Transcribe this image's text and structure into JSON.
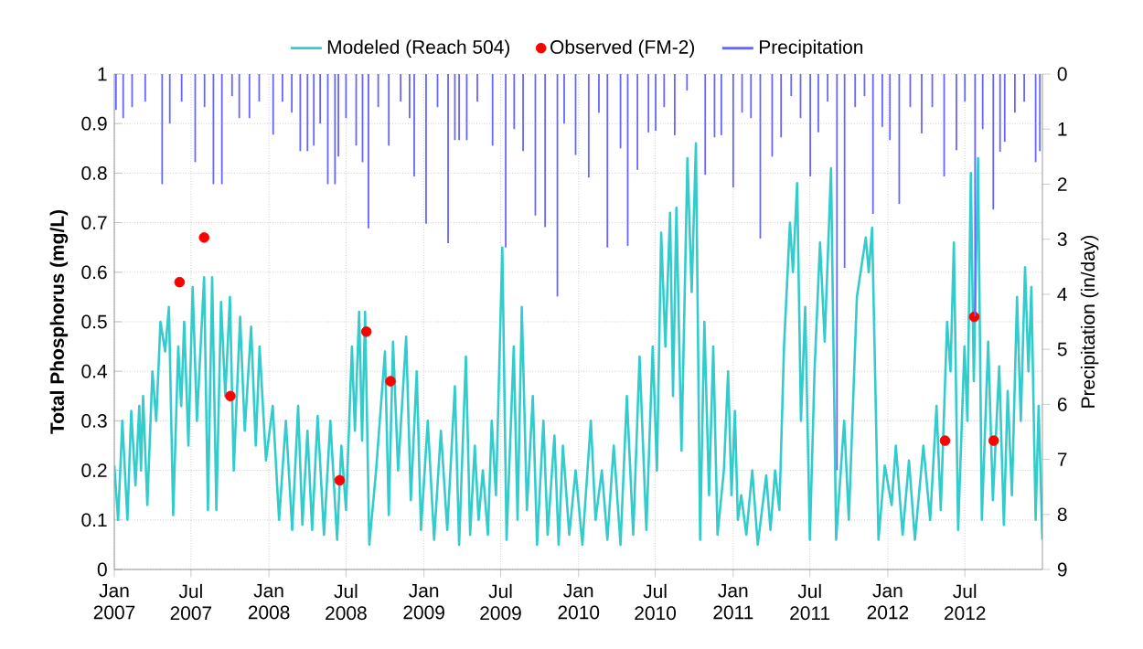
{
  "chart_data": {
    "type": "line",
    "ylabel": "Total Phosphorus (mg/L)",
    "y2label": "Precipitation (in/day)",
    "xlim": [
      "2007-01-01",
      "2012-12-31"
    ],
    "xticks": [
      {
        "value": "2007-01-01",
        "label": "Jan 2007"
      },
      {
        "value": "2007-07-01",
        "label": "Jul 2007"
      },
      {
        "value": "2008-01-01",
        "label": "Jan 2008"
      },
      {
        "value": "2008-07-01",
        "label": "Jul 2008"
      },
      {
        "value": "2009-01-01",
        "label": "Jan 2009"
      },
      {
        "value": "2009-07-01",
        "label": "Jul 2009"
      },
      {
        "value": "2010-01-01",
        "label": "Jan 2010"
      },
      {
        "value": "2010-07-01",
        "label": "Jul 2010"
      },
      {
        "value": "2011-01-01",
        "label": "Jan 2011"
      },
      {
        "value": "2011-07-01",
        "label": "Jul 2011"
      },
      {
        "value": "2012-01-01",
        "label": "Jan 2012"
      },
      {
        "value": "2012-07-01",
        "label": "Jul 2012"
      }
    ],
    "ylim": [
      0,
      1
    ],
    "yticks": [
      0,
      0.1,
      0.2,
      0.3,
      0.4,
      0.5,
      0.6,
      0.7,
      0.8,
      0.9,
      1
    ],
    "y2lim": [
      9,
      0
    ],
    "y2ticks": [
      0,
      1,
      2,
      3,
      4,
      5,
      6,
      7,
      8,
      9
    ],
    "grid": true,
    "legend": "top",
    "series": [
      {
        "name": "Modeled (Reach 504)",
        "color": "#33cccc",
        "x": [
          "2007-01-01",
          "2007-01-10",
          "2007-01-20",
          "2007-02-01",
          "2007-02-10",
          "2007-02-20",
          "2007-03-01",
          "2007-03-05",
          "2007-03-10",
          "2007-03-20",
          "2007-04-01",
          "2007-04-10",
          "2007-04-20",
          "2007-05-01",
          "2007-05-10",
          "2007-05-20",
          "2007-06-01",
          "2007-06-08",
          "2007-06-15",
          "2007-06-25",
          "2007-07-05",
          "2007-07-15",
          "2007-08-01",
          "2007-08-10",
          "2007-08-20",
          "2007-08-30",
          "2007-09-10",
          "2007-09-20",
          "2007-10-01",
          "2007-10-10",
          "2007-10-25",
          "2007-11-05",
          "2007-11-20",
          "2007-12-01",
          "2007-12-10",
          "2007-12-25",
          "2008-01-10",
          "2008-01-25",
          "2008-02-10",
          "2008-02-25",
          "2008-03-10",
          "2008-03-20",
          "2008-04-01",
          "2008-04-12",
          "2008-04-25",
          "2008-05-10",
          "2008-05-25",
          "2008-06-10",
          "2008-06-20",
          "2008-07-01",
          "2008-07-15",
          "2008-07-22",
          "2008-08-01",
          "2008-08-08",
          "2008-08-15",
          "2008-08-25",
          "2008-09-10",
          "2008-10-01",
          "2008-10-10",
          "2008-10-20",
          "2008-11-01",
          "2008-11-20",
          "2008-12-01",
          "2008-12-15",
          "2008-12-25",
          "2009-01-10",
          "2009-01-25",
          "2009-02-10",
          "2009-02-25",
          "2009-03-15",
          "2009-03-25",
          "2009-04-10",
          "2009-04-20",
          "2009-05-01",
          "2009-05-10",
          "2009-05-20",
          "2009-06-01",
          "2009-06-10",
          "2009-06-20",
          "2009-07-05",
          "2009-07-15",
          "2009-08-01",
          "2009-08-10",
          "2009-08-20",
          "2009-09-01",
          "2009-09-15",
          "2009-09-25",
          "2009-10-10",
          "2009-10-20",
          "2009-11-05",
          "2009-11-15",
          "2009-11-25",
          "2009-12-10",
          "2009-12-25",
          "2010-01-10",
          "2010-01-30",
          "2010-02-10",
          "2010-02-25",
          "2010-03-10",
          "2010-03-25",
          "2010-04-10",
          "2010-04-25",
          "2010-05-10",
          "2010-05-25",
          "2010-06-10",
          "2010-06-25",
          "2010-07-05",
          "2010-07-15",
          "2010-07-25",
          "2010-08-05",
          "2010-08-12",
          "2010-08-20",
          "2010-09-01",
          "2010-09-15",
          "2010-09-25",
          "2010-10-05",
          "2010-10-15",
          "2010-10-25",
          "2010-11-05",
          "2010-11-15",
          "2010-11-25",
          "2010-12-10",
          "2010-12-20",
          "2010-12-28",
          "2011-01-05",
          "2011-01-12",
          "2011-01-20",
          "2011-02-01",
          "2011-02-15",
          "2011-02-28",
          "2011-03-20",
          "2011-03-30",
          "2011-04-10",
          "2011-04-20",
          "2011-05-01",
          "2011-05-15",
          "2011-05-22",
          "2011-06-01",
          "2011-06-10",
          "2011-06-20",
          "2011-07-01",
          "2011-07-12",
          "2011-07-25",
          "2011-08-05",
          "2011-08-20",
          "2011-09-01",
          "2011-09-20",
          "2011-10-01",
          "2011-10-20",
          "2011-11-10",
          "2011-11-17",
          "2011-11-25",
          "2011-12-10",
          "2011-12-25",
          "2012-01-10",
          "2012-01-20",
          "2012-02-05",
          "2012-02-20",
          "2012-03-05",
          "2012-03-25",
          "2012-04-10",
          "2012-04-25",
          "2012-05-05",
          "2012-05-20",
          "2012-05-28",
          "2012-06-05",
          "2012-06-15",
          "2012-06-30",
          "2012-07-07",
          "2012-07-15",
          "2012-07-22",
          "2012-08-01",
          "2012-08-10",
          "2012-08-25",
          "2012-09-05",
          "2012-09-20",
          "2012-10-01",
          "2012-10-10",
          "2012-10-20",
          "2012-11-01",
          "2012-11-10",
          "2012-11-20",
          "2012-11-28",
          "2012-12-05",
          "2012-12-15",
          "2012-12-22",
          "2012-12-31"
        ],
        "values": [
          0.21,
          0.1,
          0.3,
          0.1,
          0.32,
          0.17,
          0.33,
          0.2,
          0.35,
          0.13,
          0.4,
          0.3,
          0.5,
          0.44,
          0.53,
          0.11,
          0.45,
          0.33,
          0.5,
          0.25,
          0.57,
          0.3,
          0.59,
          0.12,
          0.59,
          0.12,
          0.54,
          0.35,
          0.55,
          0.2,
          0.51,
          0.28,
          0.49,
          0.25,
          0.45,
          0.22,
          0.33,
          0.1,
          0.3,
          0.08,
          0.33,
          0.09,
          0.28,
          0.08,
          0.31,
          0.07,
          0.3,
          0.06,
          0.25,
          0.12,
          0.45,
          0.28,
          0.52,
          0.26,
          0.52,
          0.05,
          0.2,
          0.44,
          0.11,
          0.46,
          0.2,
          0.47,
          0.14,
          0.4,
          0.08,
          0.3,
          0.06,
          0.28,
          0.08,
          0.37,
          0.05,
          0.43,
          0.07,
          0.25,
          0.1,
          0.2,
          0.07,
          0.3,
          0.15,
          0.65,
          0.06,
          0.45,
          0.1,
          0.53,
          0.12,
          0.35,
          0.05,
          0.3,
          0.07,
          0.27,
          0.05,
          0.25,
          0.07,
          0.2,
          0.05,
          0.3,
          0.1,
          0.2,
          0.06,
          0.25,
          0.05,
          0.35,
          0.07,
          0.43,
          0.08,
          0.45,
          0.2,
          0.68,
          0.45,
          0.72,
          0.35,
          0.73,
          0.24,
          0.83,
          0.56,
          0.86,
          0.06,
          0.5,
          0.15,
          0.45,
          0.07,
          0.2,
          0.4,
          0.15,
          0.32,
          0.1,
          0.15,
          0.07,
          0.2,
          0.05,
          0.19,
          0.08,
          0.2,
          0.12,
          0.45,
          0.7,
          0.6,
          0.78,
          0.3,
          0.53,
          0.06,
          0.4,
          0.66,
          0.46,
          0.81,
          0.06,
          0.3,
          0.1,
          0.55,
          0.67,
          0.6,
          0.69,
          0.06,
          0.21,
          0.13,
          0.25,
          0.07,
          0.22,
          0.06,
          0.25,
          0.1,
          0.33,
          0.12,
          0.5,
          0.4,
          0.66,
          0.08,
          0.45,
          0.3,
          0.8,
          0.38,
          0.83,
          0.1,
          0.46,
          0.14,
          0.41,
          0.09,
          0.36,
          0.15,
          0.55,
          0.3,
          0.61,
          0.4,
          0.57,
          0.1,
          0.33,
          0.06
        ]
      },
      {
        "name": "Observed (FM-2)",
        "type": "scatter",
        "marker": "circle",
        "color": "#ff0000",
        "x": [
          "2007-06-04",
          "2007-08-01",
          "2007-10-02",
          "2008-06-16",
          "2008-08-18",
          "2008-10-14",
          "2012-05-15",
          "2012-07-23",
          "2012-09-07"
        ],
        "values": [
          0.58,
          0.67,
          0.35,
          0.18,
          0.48,
          0.38,
          0.26,
          0.51,
          0.26
        ]
      },
      {
        "name": "Precipitation",
        "type": "bar",
        "axis": "y2",
        "color": "#6666ff",
        "x": [
          "2007-01-05",
          "2007-01-22",
          "2007-02-12",
          "2007-03-15",
          "2007-04-24",
          "2007-05-12",
          "2007-06-09",
          "2007-07-11",
          "2007-08-02",
          "2007-08-23",
          "2007-09-12",
          "2007-10-06",
          "2007-10-23",
          "2007-11-16",
          "2007-12-09",
          "2008-01-11",
          "2008-02-02",
          "2008-02-24",
          "2008-03-15",
          "2008-04-01",
          "2008-04-16",
          "2008-05-01",
          "2008-05-19",
          "2008-06-05",
          "2008-06-13",
          "2008-07-01",
          "2008-07-25",
          "2008-08-09",
          "2008-08-23",
          "2008-09-15",
          "2008-10-10",
          "2008-11-07",
          "2008-11-28",
          "2008-12-09",
          "2009-01-06",
          "2009-02-02",
          "2009-02-27",
          "2009-03-15",
          "2009-03-25",
          "2009-04-12",
          "2009-05-07",
          "2009-06-12",
          "2009-07-13",
          "2009-08-02",
          "2009-08-23",
          "2009-09-21",
          "2009-10-14",
          "2009-11-12",
          "2009-11-28",
          "2009-12-25",
          "2010-01-25",
          "2010-02-18",
          "2010-03-10",
          "2010-04-10",
          "2010-04-27",
          "2010-05-20",
          "2010-06-15",
          "2010-07-02",
          "2010-07-22",
          "2010-08-16",
          "2010-09-14",
          "2010-10-27",
          "2010-11-18",
          "2010-12-04",
          "2011-01-01",
          "2011-01-22",
          "2011-02-12",
          "2011-03-06",
          "2011-04-03",
          "2011-04-24",
          "2011-05-18",
          "2011-06-09",
          "2011-07-02",
          "2011-07-21",
          "2011-08-12",
          "2011-09-03",
          "2011-09-21",
          "2011-10-16",
          "2011-11-07",
          "2011-11-27",
          "2011-12-19",
          "2012-01-06",
          "2012-01-28",
          "2012-02-23",
          "2012-03-21",
          "2012-04-15",
          "2012-05-13",
          "2012-06-11",
          "2012-07-01",
          "2012-07-25",
          "2012-08-12",
          "2012-09-06",
          "2012-09-22",
          "2012-10-03",
          "2012-10-27",
          "2012-11-18",
          "2012-12-15",
          "2012-12-25"
        ],
        "values": [
          0.65,
          0.8,
          0.6,
          0.5,
          2.0,
          0.9,
          0.5,
          1.6,
          0.6,
          2.0,
          2.0,
          0.4,
          0.8,
          0.8,
          0.5,
          1.1,
          0.5,
          0.7,
          1.4,
          1.4,
          1.3,
          0.9,
          2.0,
          2.0,
          1.5,
          0.8,
          1.3,
          1.6,
          2.8,
          0.6,
          1.3,
          0.5,
          0.8,
          1.86,
          2.72,
          0.6,
          3.07,
          1.2,
          1.2,
          1.2,
          0.5,
          1.3,
          3.15,
          1.0,
          1.4,
          2.57,
          2.78,
          4.04,
          0.9,
          1.47,
          1.88,
          0.7,
          3.15,
          1.35,
          3.12,
          1.74,
          1.06,
          1.03,
          0.6,
          1.11,
          0.3,
          1.83,
          1.15,
          1.11,
          2.06,
          0.7,
          0.8,
          2.99,
          1.5,
          1.15,
          0.4,
          0.8,
          1.86,
          1.06,
          0.5,
          7.2,
          3.52,
          0.6,
          0.4,
          2.54,
          0.96,
          1.2,
          2.36,
          0.6,
          1.08,
          0.6,
          1.86,
          1.38,
          0.5,
          4.4,
          1.0,
          2.46,
          1.41,
          1.23,
          0.7,
          0.5,
          1.6,
          1.4
        ]
      }
    ]
  }
}
